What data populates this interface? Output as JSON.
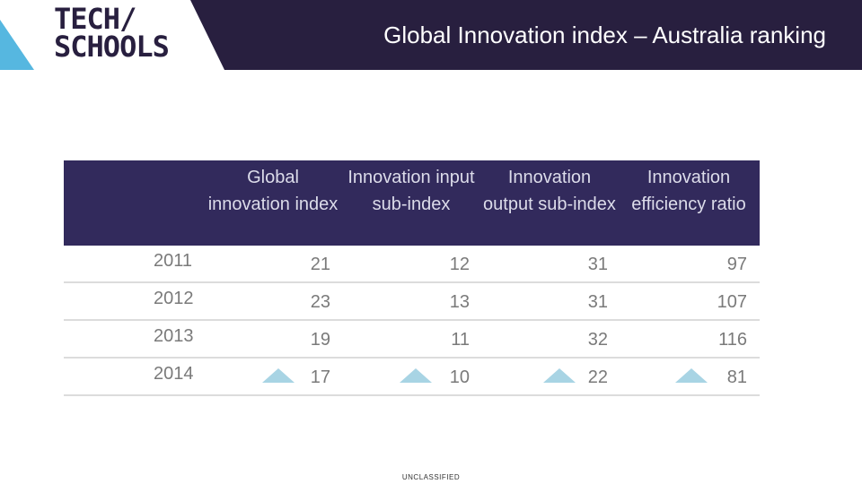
{
  "header": {
    "logo_line1": "TECH/",
    "logo_line2": "SCHOOLS",
    "title": "Global Innovation index – Australia ranking"
  },
  "table": {
    "columns": [
      "Global innovation index",
      "Innovation input sub-index",
      "Innovation output sub-index",
      "Innovation efficiency ratio"
    ],
    "rows": [
      {
        "year": "2011",
        "values": [
          "21",
          "12",
          "31",
          "97"
        ],
        "improved": false
      },
      {
        "year": "2012",
        "values": [
          "23",
          "13",
          "31",
          "107"
        ],
        "improved": false
      },
      {
        "year": "2013",
        "values": [
          "19",
          "11",
          "32",
          "116"
        ],
        "improved": false
      },
      {
        "year": "2014",
        "values": [
          "17",
          "10",
          "22",
          "81"
        ],
        "improved": true
      }
    ]
  },
  "footer": {
    "classification": "UNCLASSIFIED"
  },
  "colors": {
    "header_bg": "#281f3f",
    "table_header_bg": "#322a5c",
    "accent": "#56b7e0",
    "triangle": "#a8d4e4"
  }
}
